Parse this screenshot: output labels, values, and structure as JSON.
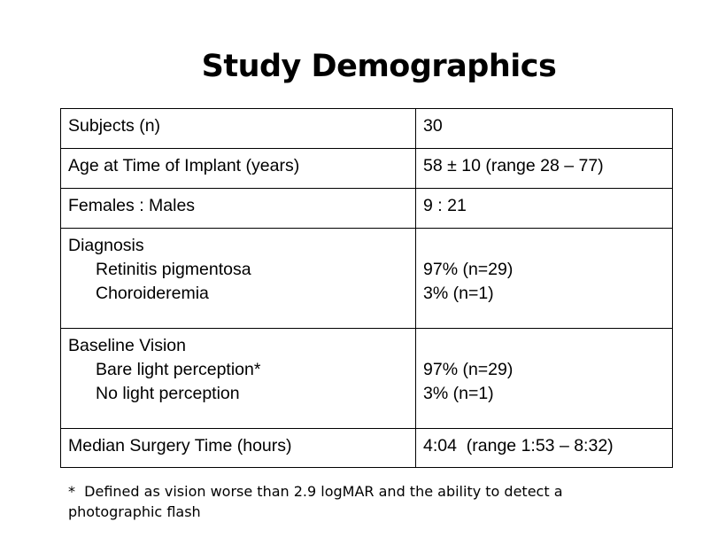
{
  "slide": {
    "title": "Study Demographics"
  },
  "table": {
    "rows": [
      {
        "label": "Subjects (n)",
        "value": "30"
      },
      {
        "label": "Age at Time of Implant (years)",
        "value": "58 ± 10 (range 28 – 77)"
      },
      {
        "label": "Females : Males",
        "value": "9 : 21"
      },
      {
        "label": "Diagnosis",
        "items": [
          {
            "label": "Retinitis pigmentosa",
            "value": "97% (n=29)"
          },
          {
            "label": "Choroideremia",
            "value": "3% (n=1)"
          }
        ]
      },
      {
        "label": "Baseline Vision",
        "items": [
          {
            "label": "Bare light perception*",
            "value": "97% (n=29)"
          },
          {
            "label": "No light perception",
            "value": "3% (n=1)"
          }
        ]
      },
      {
        "label": "Median Surgery Time (hours)",
        "value": "4:04  (range 1:53 – 8:32)"
      }
    ]
  },
  "footnote": {
    "text": "*  Defined as vision worse than 2.9 logMAR and the ability to detect a photographic flash"
  }
}
